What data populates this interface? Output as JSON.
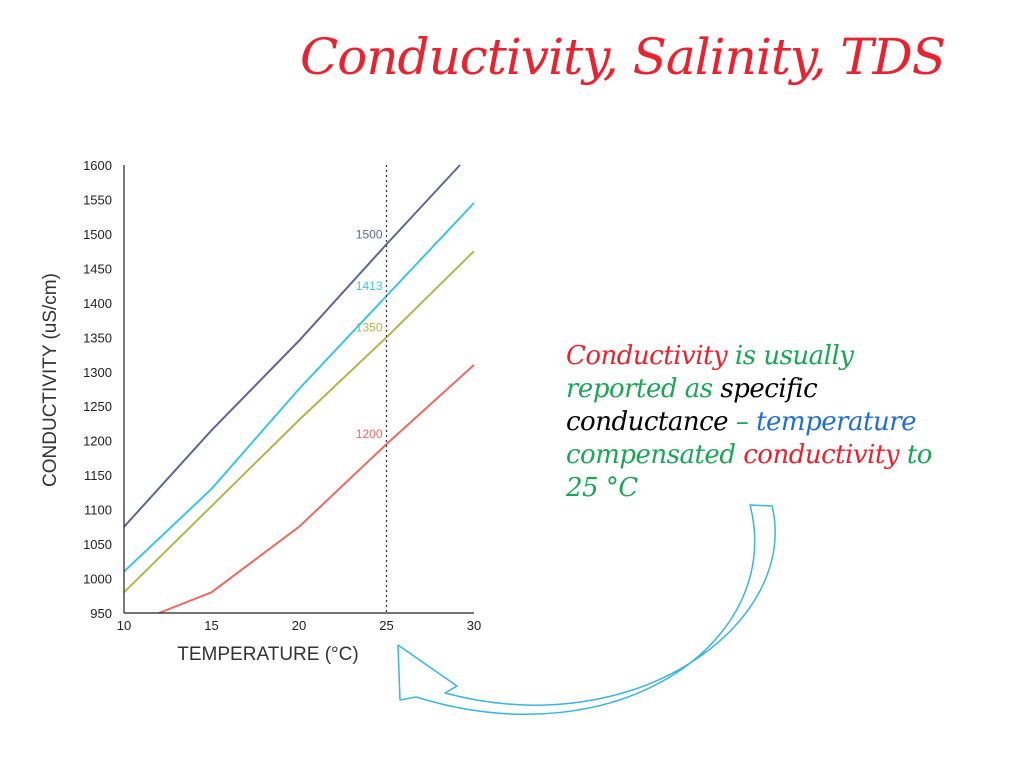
{
  "title": "Conductivity, Salinity, TDS",
  "note": {
    "parts": [
      {
        "text": "Conductivity",
        "color": "#e8232f"
      },
      {
        "text": " is usually",
        "color": "#1aa655"
      },
      {
        "text": "reported as ",
        "color": "#1aa655"
      },
      {
        "text": "specific",
        "color": "#000000"
      },
      {
        "text": "conductance",
        "color": "#000000"
      },
      {
        "text": " – ",
        "color": "#1aa655"
      },
      {
        "text": "temperature",
        "color": "#1f6fd1"
      },
      {
        "text": "compensated ",
        "color": "#1aa655"
      },
      {
        "text": "conductivity",
        "color": "#e8232f"
      },
      {
        "text": " to",
        "color": "#1aa655"
      },
      {
        "text": "25 °C",
        "color": "#1aa655"
      }
    ]
  },
  "chart_data": {
    "type": "line",
    "xlabel": "TEMPERATURE (°C)",
    "ylabel": "CONDUCTIVITY (uS/cm)",
    "xlim": [
      10,
      30
    ],
    "ylim": [
      950,
      1600
    ],
    "x_ticks": [
      10,
      15,
      20,
      25,
      30
    ],
    "y_ticks": [
      950,
      1000,
      1050,
      1100,
      1150,
      1200,
      1250,
      1300,
      1350,
      1400,
      1450,
      1500,
      1550,
      1600
    ],
    "reference_line": {
      "x": 25,
      "style": "dotted"
    },
    "grid": false,
    "series": [
      {
        "label": "1500",
        "color": "#5b6791",
        "points": [
          [
            10,
            1075
          ],
          [
            15,
            1215
          ],
          [
            20,
            1345
          ],
          [
            25,
            1485
          ],
          [
            29.2,
            1600
          ]
        ]
      },
      {
        "label": "1413",
        "color": "#3cc5e0",
        "points": [
          [
            10,
            1010
          ],
          [
            15,
            1130
          ],
          [
            20,
            1275
          ],
          [
            25,
            1410
          ],
          [
            30,
            1545
          ]
        ]
      },
      {
        "label": "1350",
        "color": "#a8bb4a",
        "points": [
          [
            10,
            980
          ],
          [
            15,
            1105
          ],
          [
            20,
            1230
          ],
          [
            25,
            1350
          ],
          [
            30,
            1475
          ]
        ]
      },
      {
        "label": "1200",
        "color": "#ec6a64",
        "points": [
          [
            12,
            950
          ],
          [
            15,
            980
          ],
          [
            20,
            1075
          ],
          [
            25,
            1195
          ],
          [
            30,
            1310
          ]
        ]
      }
    ]
  }
}
